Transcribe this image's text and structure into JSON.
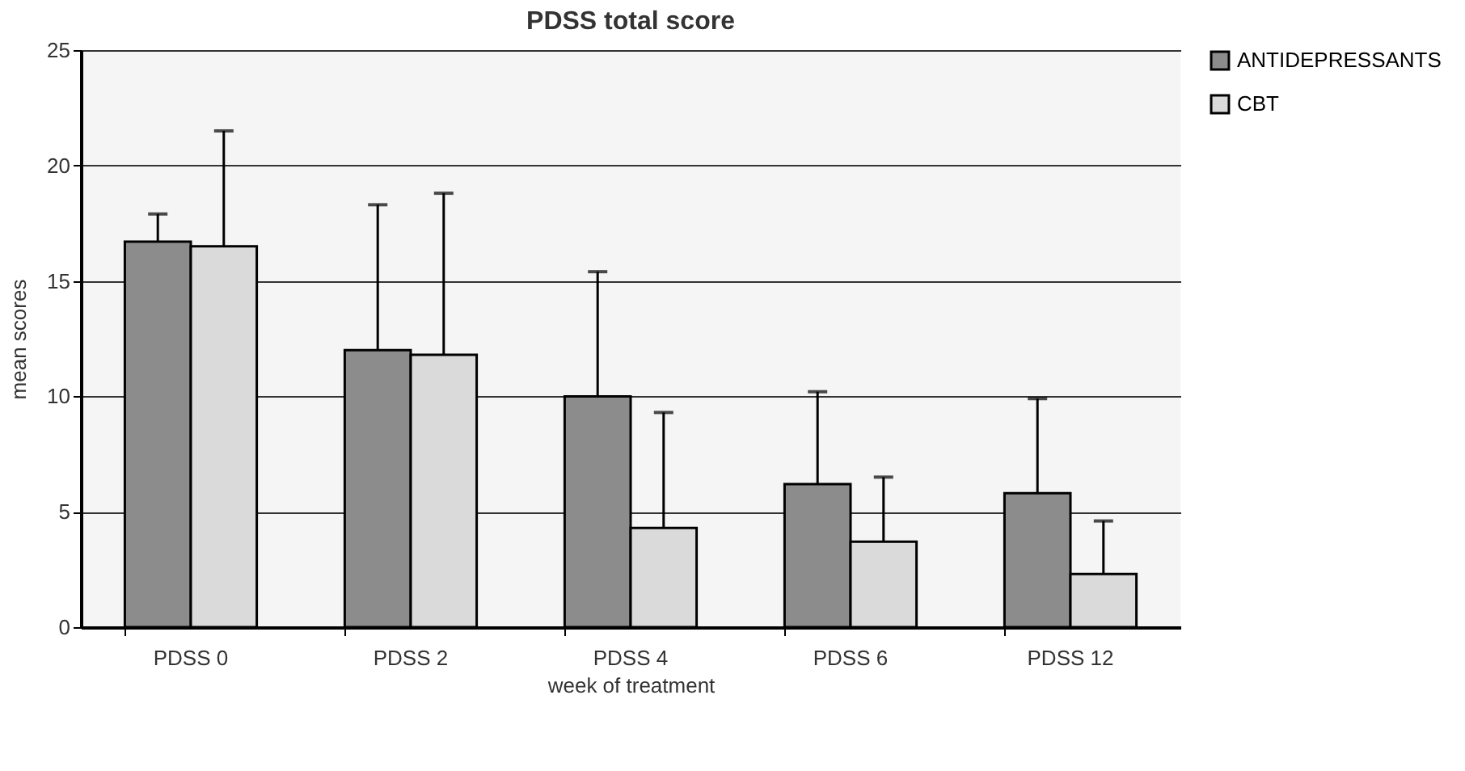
{
  "chart_data": {
    "type": "bar",
    "title": "PDSS total score",
    "xlabel": "week of treatment",
    "ylabel": "mean scores",
    "categories": [
      "PDSS 0",
      "PDSS 2",
      "PDSS 4",
      "PDSS 6",
      "PDSS 12"
    ],
    "series": [
      {
        "name": "ANTIDEPRESSANTS",
        "color": "#8c8c8c",
        "values": [
          16.7,
          12.0,
          10.0,
          6.2,
          5.8
        ],
        "errors": [
          [
            16.7,
            17.9
          ],
          [
            12.0,
            18.3
          ],
          [
            10.0,
            15.4
          ],
          [
            6.2,
            10.2
          ],
          [
            5.8,
            9.9
          ]
        ]
      },
      {
        "name": "CBT",
        "color": "#dadada",
        "values": [
          16.5,
          11.8,
          4.3,
          3.7,
          2.3
        ],
        "errors": [
          [
            16.5,
            21.5
          ],
          [
            11.8,
            18.8
          ],
          [
            4.3,
            9.3
          ],
          [
            3.7,
            6.5
          ],
          [
            2.3,
            4.6
          ]
        ]
      }
    ],
    "ylim": [
      0,
      25
    ],
    "yticks": [
      0,
      5,
      10,
      15,
      20,
      25
    ],
    "grid": "y",
    "legend": "right"
  }
}
